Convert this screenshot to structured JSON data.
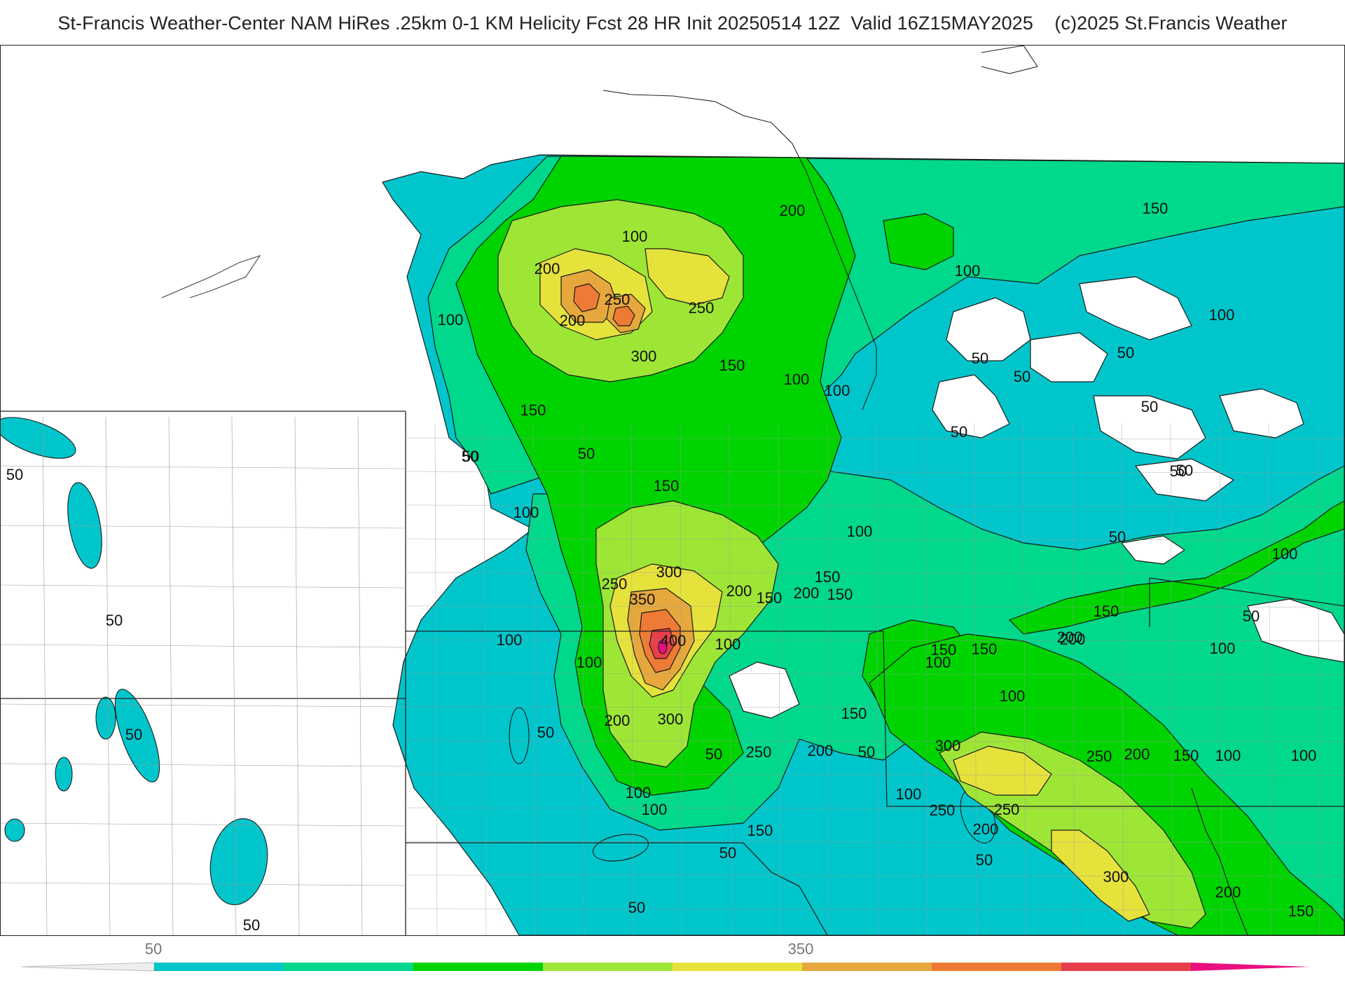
{
  "header": {
    "title": "St-Francis Weather-Center NAM HiRes .25km 0-1 KM Helicity Fcst 28 HR Init 20250514 12Z  Valid 16Z15MAY2025    (c)2025 St.Francis Weather"
  },
  "map": {
    "field": "0-1 KM Helicity",
    "contour_labels": [
      "50",
      "100",
      "150",
      "200",
      "250",
      "300",
      "350",
      "400"
    ],
    "fill_colors": {
      "c50": "#00c6cc",
      "c100": "#00d88c",
      "c150": "#00d400",
      "c200": "#9ee636",
      "c250": "#e6e23c",
      "c300": "#e6a83c",
      "c350": "#ee7b35",
      "c400": "#e63f4b",
      "c450": "#e8107f"
    },
    "boundary_color": "#9a9a9a",
    "state_line_color": "#222222"
  },
  "colorbar": {
    "tick_labels": [
      "50",
      "350"
    ],
    "colors": [
      "#00c6cc",
      "#00d88c",
      "#00d400",
      "#9ee636",
      "#e6e23c",
      "#e6a83c",
      "#ee7b35",
      "#e63f4b",
      "#e8107f"
    ]
  }
}
